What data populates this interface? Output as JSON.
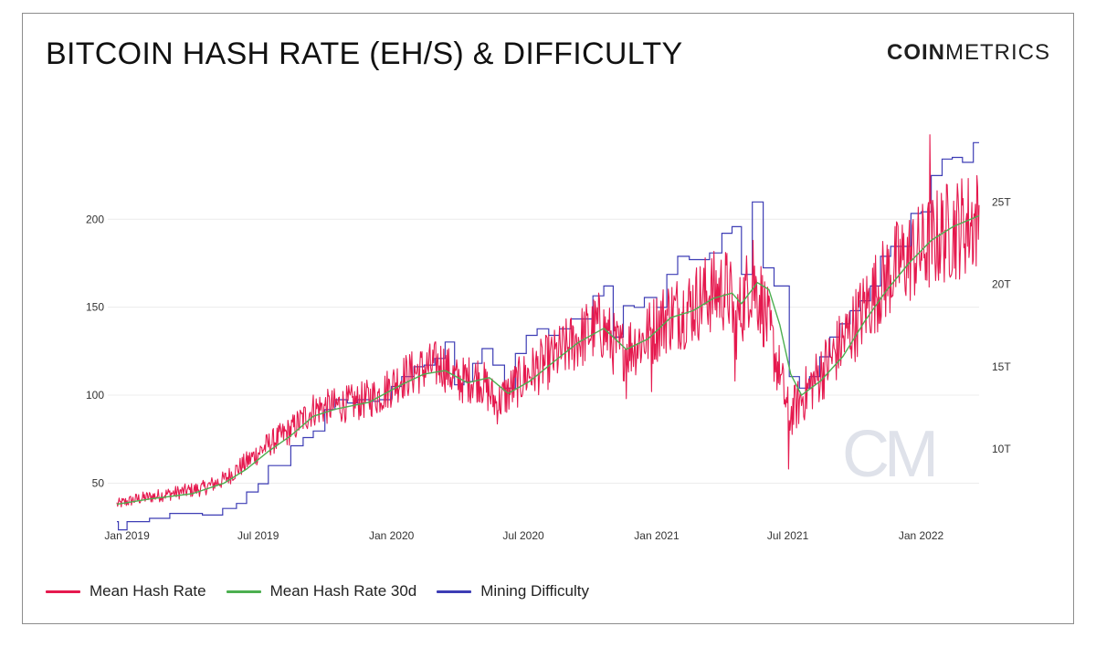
{
  "title": "BITCOIN HASH RATE (EH/S) & DIFFICULTY",
  "brand": {
    "bold": "COIN",
    "light": "METRICS",
    "watermark": "CM"
  },
  "colors": {
    "hash_rate": "#e5194e",
    "hash_rate_30d": "#4caf50",
    "difficulty": "#3d3db5"
  },
  "chart_data": {
    "type": "line",
    "x_ticks": [
      "Jan 2019",
      "Jul 2019",
      "Jan 2020",
      "Jul 2020",
      "Jan 2021",
      "Jul 2021",
      "Jan 2022"
    ],
    "x_range": [
      "2018-12-18",
      "2022-03-22"
    ],
    "y_left": {
      "label": "",
      "ticks": [
        50,
        100,
        150,
        200
      ],
      "range": [
        30,
        252
      ]
    },
    "y_right": {
      "label": "",
      "ticks": [
        "10T",
        "15T",
        "20T",
        "25T"
      ],
      "tick_values": [
        10,
        15,
        20,
        25
      ],
      "range": [
        5.8,
        29.5
      ]
    },
    "series": [
      {
        "name": "Mean Hash Rate",
        "axis": "left",
        "type": "noisy-daily",
        "trend": [
          {
            "date": "2018-12-18",
            "value": 38
          },
          {
            "date": "2019-01-15",
            "value": 41
          },
          {
            "date": "2019-03-01",
            "value": 44
          },
          {
            "date": "2019-04-15",
            "value": 47
          },
          {
            "date": "2019-05-15",
            "value": 52
          },
          {
            "date": "2019-06-15",
            "value": 62
          },
          {
            "date": "2019-07-15",
            "value": 72
          },
          {
            "date": "2019-08-15",
            "value": 80
          },
          {
            "date": "2019-09-15",
            "value": 92
          },
          {
            "date": "2019-10-15",
            "value": 94
          },
          {
            "date": "2019-11-15",
            "value": 96
          },
          {
            "date": "2019-12-15",
            "value": 100
          },
          {
            "date": "2020-01-15",
            "value": 110
          },
          {
            "date": "2020-02-15",
            "value": 115
          },
          {
            "date": "2020-03-10",
            "value": 118
          },
          {
            "date": "2020-04-01",
            "value": 108
          },
          {
            "date": "2020-05-01",
            "value": 110
          },
          {
            "date": "2020-05-25",
            "value": 95
          },
          {
            "date": "2020-07-01",
            "value": 110
          },
          {
            "date": "2020-08-15",
            "value": 122
          },
          {
            "date": "2020-09-15",
            "value": 132
          },
          {
            "date": "2020-10-15",
            "value": 140
          },
          {
            "date": "2020-11-10",
            "value": 125
          },
          {
            "date": "2020-12-15",
            "value": 132
          },
          {
            "date": "2021-01-15",
            "value": 145
          },
          {
            "date": "2021-02-15",
            "value": 150
          },
          {
            "date": "2021-03-15",
            "value": 158
          },
          {
            "date": "2021-04-10",
            "value": 160
          },
          {
            "date": "2021-04-20",
            "value": 140
          },
          {
            "date": "2021-05-10",
            "value": 165
          },
          {
            "date": "2021-05-25",
            "value": 155
          },
          {
            "date": "2021-06-15",
            "value": 120
          },
          {
            "date": "2021-07-03",
            "value": 88
          },
          {
            "date": "2021-08-01",
            "value": 105
          },
          {
            "date": "2021-09-01",
            "value": 122
          },
          {
            "date": "2021-10-01",
            "value": 140
          },
          {
            "date": "2021-11-01",
            "value": 160
          },
          {
            "date": "2021-12-01",
            "value": 175
          },
          {
            "date": "2022-01-01",
            "value": 182
          },
          {
            "date": "2022-02-01",
            "value": 192
          },
          {
            "date": "2022-03-22",
            "value": 200
          }
        ],
        "notable_points": [
          {
            "date": "2021-04-19",
            "value": 108
          },
          {
            "date": "2021-05-14",
            "value": 188
          },
          {
            "date": "2021-06-20",
            "value": 106
          },
          {
            "date": "2021-07-02",
            "value": 58
          },
          {
            "date": "2020-12-25",
            "value": 102
          },
          {
            "date": "2020-11-20",
            "value": 98
          },
          {
            "date": "2022-01-13",
            "value": 248
          }
        ]
      },
      {
        "name": "Mean Hash Rate 30d",
        "axis": "left",
        "points": [
          {
            "date": "2018-12-18",
            "value": 38
          },
          {
            "date": "2019-02-01",
            "value": 41
          },
          {
            "date": "2019-04-01",
            "value": 44
          },
          {
            "date": "2019-05-15",
            "value": 50
          },
          {
            "date": "2019-06-15",
            "value": 58
          },
          {
            "date": "2019-07-15",
            "value": 68
          },
          {
            "date": "2019-08-15",
            "value": 77
          },
          {
            "date": "2019-09-15",
            "value": 88
          },
          {
            "date": "2019-10-15",
            "value": 92
          },
          {
            "date": "2019-12-01",
            "value": 96
          },
          {
            "date": "2020-01-15",
            "value": 106
          },
          {
            "date": "2020-02-15",
            "value": 112
          },
          {
            "date": "2020-03-15",
            "value": 114
          },
          {
            "date": "2020-04-15",
            "value": 107
          },
          {
            "date": "2020-05-15",
            "value": 110
          },
          {
            "date": "2020-06-10",
            "value": 101
          },
          {
            "date": "2020-07-10",
            "value": 108
          },
          {
            "date": "2020-08-15",
            "value": 120
          },
          {
            "date": "2020-09-15",
            "value": 130
          },
          {
            "date": "2020-10-20",
            "value": 138
          },
          {
            "date": "2020-11-20",
            "value": 126
          },
          {
            "date": "2020-12-20",
            "value": 132
          },
          {
            "date": "2021-01-20",
            "value": 144
          },
          {
            "date": "2021-02-20",
            "value": 148
          },
          {
            "date": "2021-03-20",
            "value": 155
          },
          {
            "date": "2021-04-15",
            "value": 158
          },
          {
            "date": "2021-04-28",
            "value": 152
          },
          {
            "date": "2021-05-20",
            "value": 164
          },
          {
            "date": "2021-06-05",
            "value": 160
          },
          {
            "date": "2021-06-20",
            "value": 140
          },
          {
            "date": "2021-07-05",
            "value": 112
          },
          {
            "date": "2021-07-20",
            "value": 100
          },
          {
            "date": "2021-08-15",
            "value": 108
          },
          {
            "date": "2021-09-15",
            "value": 122
          },
          {
            "date": "2021-10-15",
            "value": 142
          },
          {
            "date": "2021-11-15",
            "value": 160
          },
          {
            "date": "2021-12-15",
            "value": 175
          },
          {
            "date": "2022-01-15",
            "value": 188
          },
          {
            "date": "2022-02-15",
            "value": 196
          },
          {
            "date": "2022-03-22",
            "value": 202
          }
        ]
      },
      {
        "name": "Mining Difficulty",
        "axis": "right",
        "type": "step",
        "points": [
          {
            "date": "2018-12-18",
            "value": 5.6
          },
          {
            "date": "2018-12-20",
            "value": 5.1
          },
          {
            "date": "2019-01-01",
            "value": 5.6
          },
          {
            "date": "2019-01-15",
            "value": 5.6
          },
          {
            "date": "2019-02-01",
            "value": 5.8
          },
          {
            "date": "2019-03-01",
            "value": 6.1
          },
          {
            "date": "2019-04-15",
            "value": 6.0
          },
          {
            "date": "2019-05-13",
            "value": 6.4
          },
          {
            "date": "2019-06-01",
            "value": 6.7
          },
          {
            "date": "2019-06-15",
            "value": 7.4
          },
          {
            "date": "2019-07-01",
            "value": 7.9
          },
          {
            "date": "2019-07-15",
            "value": 9.0
          },
          {
            "date": "2019-08-01",
            "value": 9.0
          },
          {
            "date": "2019-08-15",
            "value": 10.2
          },
          {
            "date": "2019-09-01",
            "value": 10.7
          },
          {
            "date": "2019-09-15",
            "value": 11.1
          },
          {
            "date": "2019-10-01",
            "value": 12.4
          },
          {
            "date": "2019-10-15",
            "value": 13.0
          },
          {
            "date": "2019-11-01",
            "value": 12.8
          },
          {
            "date": "2019-11-15",
            "value": 13.0
          },
          {
            "date": "2019-12-01",
            "value": 12.9
          },
          {
            "date": "2019-12-15",
            "value": 13.0
          },
          {
            "date": "2020-01-01",
            "value": 13.8
          },
          {
            "date": "2020-01-15",
            "value": 14.4
          },
          {
            "date": "2020-02-01",
            "value": 15.0
          },
          {
            "date": "2020-02-15",
            "value": 15.1
          },
          {
            "date": "2020-03-01",
            "value": 15.5
          },
          {
            "date": "2020-03-15",
            "value": 16.5
          },
          {
            "date": "2020-03-28",
            "value": 13.9
          },
          {
            "date": "2020-04-10",
            "value": 14.1
          },
          {
            "date": "2020-04-22",
            "value": 15.2
          },
          {
            "date": "2020-05-05",
            "value": 16.1
          },
          {
            "date": "2020-05-20",
            "value": 15.1
          },
          {
            "date": "2020-06-05",
            "value": 13.7
          },
          {
            "date": "2020-06-20",
            "value": 15.8
          },
          {
            "date": "2020-07-05",
            "value": 16.9
          },
          {
            "date": "2020-07-20",
            "value": 17.3
          },
          {
            "date": "2020-08-05",
            "value": 16.9
          },
          {
            "date": "2020-08-20",
            "value": 17.3
          },
          {
            "date": "2020-09-05",
            "value": 17.9
          },
          {
            "date": "2020-09-20",
            "value": 17.9
          },
          {
            "date": "2020-10-05",
            "value": 19.3
          },
          {
            "date": "2020-10-20",
            "value": 19.9
          },
          {
            "date": "2020-11-02",
            "value": 16.8
          },
          {
            "date": "2020-11-16",
            "value": 18.7
          },
          {
            "date": "2020-12-01",
            "value": 18.6
          },
          {
            "date": "2020-12-15",
            "value": 19.2
          },
          {
            "date": "2021-01-01",
            "value": 18.6
          },
          {
            "date": "2021-01-15",
            "value": 20.6
          },
          {
            "date": "2021-01-30",
            "value": 21.7
          },
          {
            "date": "2021-02-15",
            "value": 21.5
          },
          {
            "date": "2021-03-01",
            "value": 21.5
          },
          {
            "date": "2021-03-15",
            "value": 21.9
          },
          {
            "date": "2021-04-01",
            "value": 23.1
          },
          {
            "date": "2021-04-15",
            "value": 23.5
          },
          {
            "date": "2021-04-28",
            "value": 20.6
          },
          {
            "date": "2021-05-13",
            "value": 25.0
          },
          {
            "date": "2021-05-28",
            "value": 21.0
          },
          {
            "date": "2021-06-12",
            "value": 19.9
          },
          {
            "date": "2021-07-03",
            "value": 14.4
          },
          {
            "date": "2021-07-17",
            "value": 13.7
          },
          {
            "date": "2021-07-31",
            "value": 14.4
          },
          {
            "date": "2021-08-14",
            "value": 15.6
          },
          {
            "date": "2021-08-28",
            "value": 16.8
          },
          {
            "date": "2021-09-11",
            "value": 17.6
          },
          {
            "date": "2021-09-25",
            "value": 18.4
          },
          {
            "date": "2021-10-09",
            "value": 19.0
          },
          {
            "date": "2021-10-23",
            "value": 19.9
          },
          {
            "date": "2021-11-06",
            "value": 21.7
          },
          {
            "date": "2021-11-20",
            "value": 22.3
          },
          {
            "date": "2021-12-04",
            "value": 22.3
          },
          {
            "date": "2021-12-18",
            "value": 24.3
          },
          {
            "date": "2022-01-01",
            "value": 24.4
          },
          {
            "date": "2022-01-15",
            "value": 26.6
          },
          {
            "date": "2022-01-30",
            "value": 27.6
          },
          {
            "date": "2022-02-13",
            "value": 27.7
          },
          {
            "date": "2022-02-27",
            "value": 27.4
          },
          {
            "date": "2022-03-14",
            "value": 28.6
          },
          {
            "date": "2022-03-22",
            "value": 28.6
          }
        ]
      }
    ],
    "legend": [
      "Mean Hash Rate",
      "Mean Hash Rate 30d",
      "Mining Difficulty"
    ],
    "legend_position": "bottom-left",
    "grid": true
  }
}
